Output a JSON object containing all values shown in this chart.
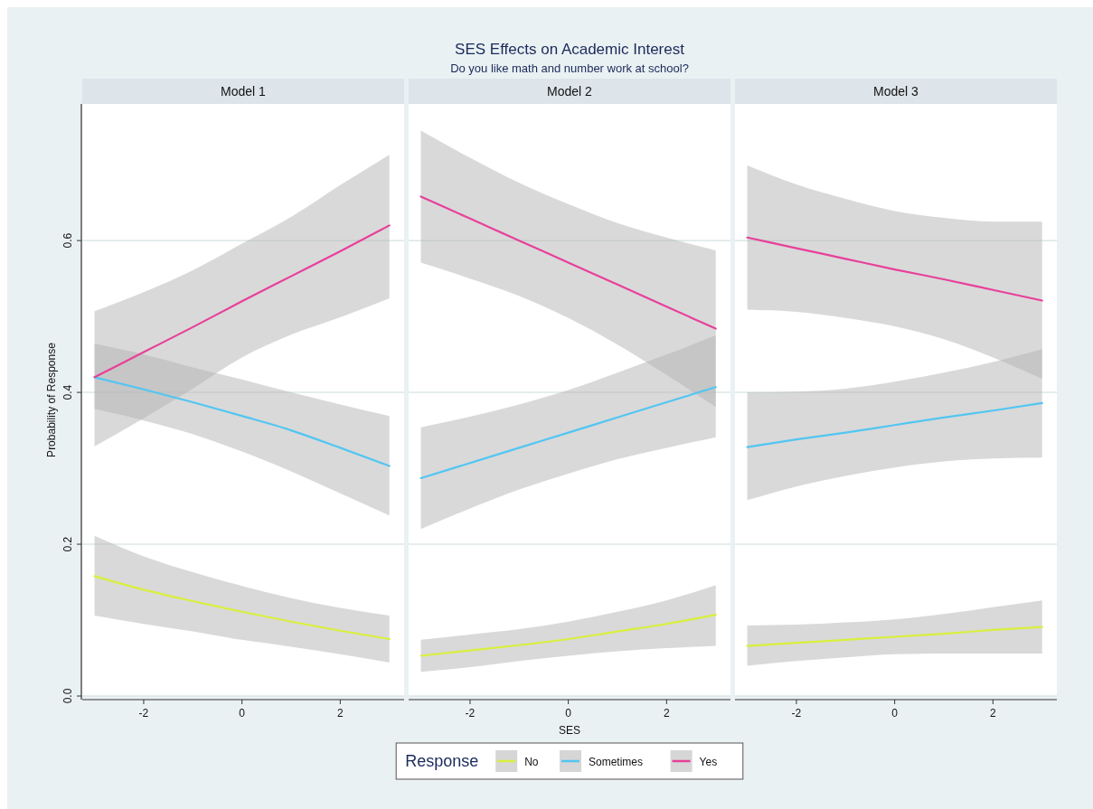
{
  "chart_data": [
    {
      "type": "line",
      "title": "Model 1",
      "ylabel": "Probability of Response",
      "annotations": [
        "SES Effects on Academic Interest",
        "Do you like math and number work at school?"
      ],
      "xlim": [
        -3.25,
        3.3
      ],
      "xticks": [
        -2,
        0,
        2
      ],
      "ylim": [
        0,
        0.78
      ],
      "yticks": [
        {
          "value": 0,
          "label": "0.0"
        },
        0.2,
        0.4,
        0.6
      ],
      "grid": "y",
      "series": [
        {
          "color": "#d9ef3c",
          "x": [
            -3,
            -2,
            -1,
            0,
            1,
            2,
            3
          ],
          "values": [
            0.158,
            0.14,
            0.125,
            0.111,
            0.098,
            0.086,
            0.075
          ],
          "lower": [
            0.106,
            0.095,
            0.085,
            0.074,
            0.065,
            0.055,
            0.044
          ],
          "upper": [
            0.211,
            0.184,
            0.163,
            0.145,
            0.129,
            0.116,
            0.106
          ]
        },
        {
          "color": "#52c6f2",
          "x": [
            -3,
            -2,
            -1,
            0,
            1,
            2,
            3
          ],
          "values": [
            0.42,
            0.404,
            0.387,
            0.369,
            0.35,
            0.327,
            0.303
          ],
          "lower": [
            0.378,
            0.363,
            0.345,
            0.322,
            0.296,
            0.267,
            0.238
          ],
          "upper": [
            0.464,
            0.45,
            0.433,
            0.417,
            0.4,
            0.384,
            0.369
          ]
        },
        {
          "color": "#e8409a",
          "x": [
            -3,
            -2,
            -1,
            0,
            1,
            2,
            3
          ],
          "values": [
            0.42,
            0.453,
            0.486,
            0.52,
            0.553,
            0.586,
            0.62
          ],
          "lower": [
            0.329,
            0.366,
            0.405,
            0.446,
            0.476,
            0.499,
            0.524
          ],
          "upper": [
            0.507,
            0.532,
            0.561,
            0.596,
            0.631,
            0.673,
            0.713
          ]
        }
      ]
    },
    {
      "type": "line",
      "title": "Model 2",
      "xlabel": "SES",
      "legend": "bottom",
      "legend_title": "Response",
      "tick_labels": "x",
      "xlim": [
        -3.25,
        3.3
      ],
      "xticks": [
        -2,
        0,
        2
      ],
      "ylim": [
        0,
        0.78
      ],
      "yticks": [
        0,
        0.2,
        0.4,
        0.6
      ],
      "grid": "y",
      "series": [
        {
          "name": "No",
          "color": "#d9ef3c",
          "x": [
            -3,
            -2,
            -1,
            0,
            1,
            2,
            3
          ],
          "values": [
            0.053,
            0.06,
            0.067,
            0.075,
            0.085,
            0.095,
            0.107
          ],
          "lower": [
            0.032,
            0.038,
            0.046,
            0.053,
            0.059,
            0.063,
            0.066
          ],
          "upper": [
            0.074,
            0.081,
            0.088,
            0.098,
            0.111,
            0.126,
            0.146
          ]
        },
        {
          "name": "Sometimes",
          "color": "#52c6f2",
          "x": [
            -3,
            -2,
            -1,
            0,
            1,
            2,
            3
          ],
          "values": [
            0.287,
            0.307,
            0.327,
            0.347,
            0.367,
            0.387,
            0.407
          ],
          "lower": [
            0.22,
            0.247,
            0.272,
            0.293,
            0.312,
            0.327,
            0.341
          ],
          "upper": [
            0.354,
            0.368,
            0.384,
            0.403,
            0.426,
            0.45,
            0.475
          ]
        },
        {
          "name": "Yes",
          "color": "#e8409a",
          "x": [
            -3,
            -2,
            -1,
            0,
            1,
            2,
            3
          ],
          "values": [
            0.658,
            0.629,
            0.6,
            0.571,
            0.542,
            0.513,
            0.484
          ],
          "lower": [
            0.571,
            0.55,
            0.527,
            0.498,
            0.463,
            0.423,
            0.381
          ],
          "upper": [
            0.745,
            0.709,
            0.676,
            0.648,
            0.623,
            0.604,
            0.587
          ]
        }
      ]
    },
    {
      "type": "line",
      "title": "Model 3",
      "tick_labels": "x",
      "xlim": [
        -3.25,
        3.3
      ],
      "xticks": [
        -2,
        0,
        2
      ],
      "ylim": [
        0,
        0.78
      ],
      "yticks": [
        0,
        0.2,
        0.4,
        0.6
      ],
      "grid": "y",
      "series": [
        {
          "color": "#d9ef3c",
          "x": [
            -3,
            -2,
            -1,
            0,
            1,
            2,
            3
          ],
          "values": [
            0.066,
            0.07,
            0.074,
            0.078,
            0.082,
            0.087,
            0.091
          ],
          "lower": [
            0.04,
            0.046,
            0.051,
            0.055,
            0.056,
            0.056,
            0.056
          ],
          "upper": [
            0.093,
            0.094,
            0.097,
            0.101,
            0.108,
            0.117,
            0.126
          ]
        },
        {
          "color": "#52c6f2",
          "x": [
            -3,
            -2,
            -1,
            0,
            1,
            2,
            3
          ],
          "values": [
            0.328,
            0.338,
            0.347,
            0.357,
            0.367,
            0.376,
            0.386
          ],
          "lower": [
            0.258,
            0.276,
            0.29,
            0.301,
            0.309,
            0.313,
            0.314
          ],
          "upper": [
            0.4,
            0.401,
            0.405,
            0.414,
            0.426,
            0.44,
            0.457
          ]
        },
        {
          "color": "#e8409a",
          "x": [
            -3,
            -2,
            -1,
            0,
            1,
            2,
            3
          ],
          "values": [
            0.604,
            0.59,
            0.576,
            0.562,
            0.549,
            0.535,
            0.521
          ],
          "lower": [
            0.509,
            0.506,
            0.498,
            0.487,
            0.47,
            0.446,
            0.418
          ],
          "upper": [
            0.699,
            0.674,
            0.655,
            0.639,
            0.63,
            0.625,
            0.625
          ]
        }
      ]
    }
  ]
}
